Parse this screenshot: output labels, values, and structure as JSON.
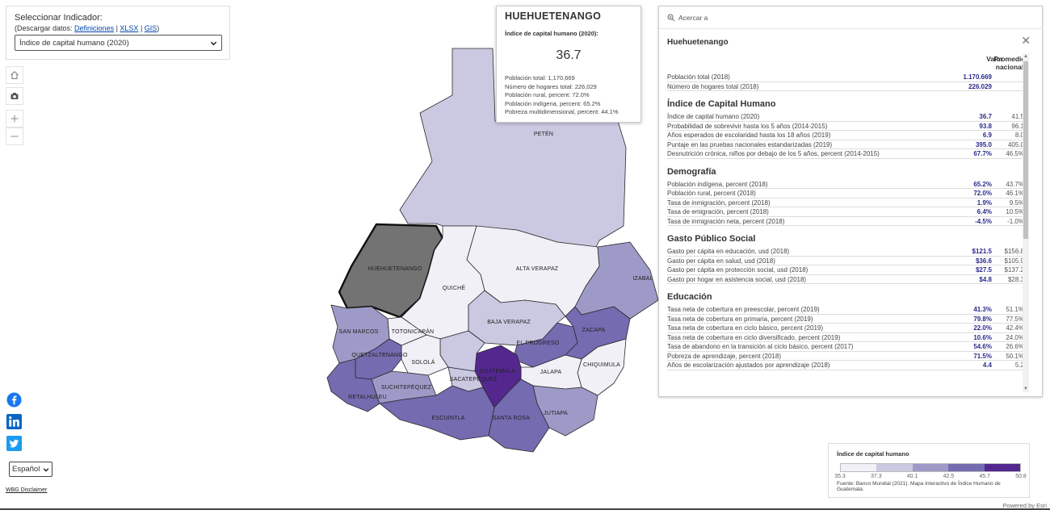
{
  "selector": {
    "label": "Seleccionar Indicador:",
    "download_prefix": "(Descargar datos:",
    "links": [
      "Definiciones",
      "XLSX",
      "GIS"
    ],
    "download_suffix": ")",
    "selected": "Índice de capital humano (2020)"
  },
  "map": {
    "colors": {
      "c1": "#f2f0f7",
      "c2": "#cbc9e2",
      "c3": "#9e9ac8",
      "c4": "#756bb1",
      "c5": "#54278f",
      "selected": "#737373"
    },
    "labels": [
      "PETÉN",
      "HUEHUETENANGO",
      "QUICHÉ",
      "ALTA VERAPAZ",
      "IZABAL",
      "BAJA VERAPAZ",
      "SAN MARCOS",
      "TOTONICAPÁN",
      "EL PROGRESO",
      "ZACAPA",
      "QUETZALTENANGO",
      "SOLOLÁ",
      "GUATEMALA",
      "CHIQUIMULA",
      "SACATEPÉQUEZ",
      "JALAPA",
      "SUCHITEPÉQUEZ",
      "RETALHULEU",
      "ESCUINTLA",
      "SANTA ROSA",
      "JUTIAPA"
    ]
  },
  "info_card": {
    "title": "HUEHUETENANGO",
    "indicator": "Índice de capital humano (2020):",
    "value": "36.7",
    "stats": [
      "Población total: 1,170,669",
      "Número de hogares total: 226,029",
      "Población rural, percent: 72.0%",
      "Población indígena, percent: 65.2%",
      "Pobreza multidimensional, percent: 44.1%"
    ]
  },
  "detail": {
    "zoom_label": "Acercar a",
    "title": "Huehuetenango",
    "col_value": "Valor",
    "col_avg": "Promedio nacional",
    "top_rows": [
      {
        "label": "Población total (2018)",
        "value": "1.170.669",
        "avg": "-"
      },
      {
        "label": "Número de hogares total (2018)",
        "value": "226.029",
        "avg": "-"
      }
    ],
    "sections": [
      {
        "title": "Índice de Capital Humano",
        "rows": [
          {
            "label": "Índice de capital humano (2020)",
            "value": "36.7",
            "avg": "41.5"
          },
          {
            "label": "Probabilidad de sobrevivir hasta los 5 años (2014-2015)",
            "value": "93.8",
            "avg": "96.1"
          },
          {
            "label": "Años esperados de escolaridad hasta los 18 años (2019)",
            "value": "6.9",
            "avg": "8.0"
          },
          {
            "label": "Puntaje en las pruebas nacionales estandarizadas (2019)",
            "value": "395.0",
            "avg": "405.0"
          },
          {
            "label": "Desnutrición crónica, niños por debajo de los 5 años, percent (2014-2015)",
            "value": "67.7%",
            "avg": "46.5%"
          }
        ]
      },
      {
        "title": "Demografía",
        "rows": [
          {
            "label": "Población indígena, percent (2018)",
            "value": "65.2%",
            "avg": "43.7%"
          },
          {
            "label": "Población rural, percent (2018)",
            "value": "72.0%",
            "avg": "46.1%"
          },
          {
            "label": "Tasa de inmigración, percent (2018)",
            "value": "1.9%",
            "avg": "9.5%"
          },
          {
            "label": "Tasa de emigración, percent (2018)",
            "value": "6.4%",
            "avg": "10.5%"
          },
          {
            "label": "Tasa de inmigración neta, percent (2018)",
            "value": "-4.5%",
            "avg": "-1.0%"
          }
        ]
      },
      {
        "title": "Gasto Público Social",
        "rows": [
          {
            "label": "Gasto per cápita en educación, usd (2018)",
            "value": "$121.5",
            "avg": "$156.8"
          },
          {
            "label": "Gasto per cápita en salud, usd (2018)",
            "value": "$36.6",
            "avg": "$105.9"
          },
          {
            "label": "Gasto per cápita en protección social, usd (2018)",
            "value": "$27.5",
            "avg": "$137.2"
          },
          {
            "label": "Gasto por hogar en asistencia social, usd (2018)",
            "value": "$4.8",
            "avg": "$28.3"
          }
        ]
      },
      {
        "title": "Educación",
        "rows": [
          {
            "label": "Tasa neta de cobertura en preescolar, percent (2019)",
            "value": "41.3%",
            "avg": "51.1%"
          },
          {
            "label": "Tasa neta de cobertura en primaria, percent (2019)",
            "value": "79.8%",
            "avg": "77.5%"
          },
          {
            "label": "Tasa neta de cobertura en ciclo básico, percent (2019)",
            "value": "22.0%",
            "avg": "42.4%"
          },
          {
            "label": "Tasa neta de cobertura en ciclo diversificado, percent (2019)",
            "value": "10.6%",
            "avg": "24.0%"
          },
          {
            "label": "Tasa de abandono en la transición al ciclo básico, percent (2017)",
            "value": "54.6%",
            "avg": "26.6%"
          },
          {
            "label": "Pobreza de aprendizaje, percent (2018)",
            "value": "71.5%",
            "avg": "50.1%"
          },
          {
            "label": "Años de escolarización ajustados por aprendizaje (2018)",
            "value": "4.4",
            "avg": "5.2"
          }
        ]
      }
    ]
  },
  "legend": {
    "title": "Índice de capital humano",
    "colors": [
      "#f2f0f7",
      "#cbc9e2",
      "#9e9ac8",
      "#756bb1",
      "#54278f"
    ],
    "ticks": [
      "35.3",
      "37.3",
      "40.1",
      "42.5",
      "45.7",
      "50.8"
    ],
    "source": "Fuente: Banco Mundial (2021). Mapa Interactivo de Índice Humano de Guatemala."
  },
  "powered_by": "Powered by Esri",
  "language": "Español",
  "disclaimer": "WBG Disclaimer",
  "icons": [
    "home-icon",
    "camera-icon",
    "zoom-in-icon",
    "zoom-out-icon",
    "facebook-icon",
    "linkedin-icon",
    "twitter-icon",
    "search-icon",
    "close-icon",
    "chevron-down-icon"
  ]
}
